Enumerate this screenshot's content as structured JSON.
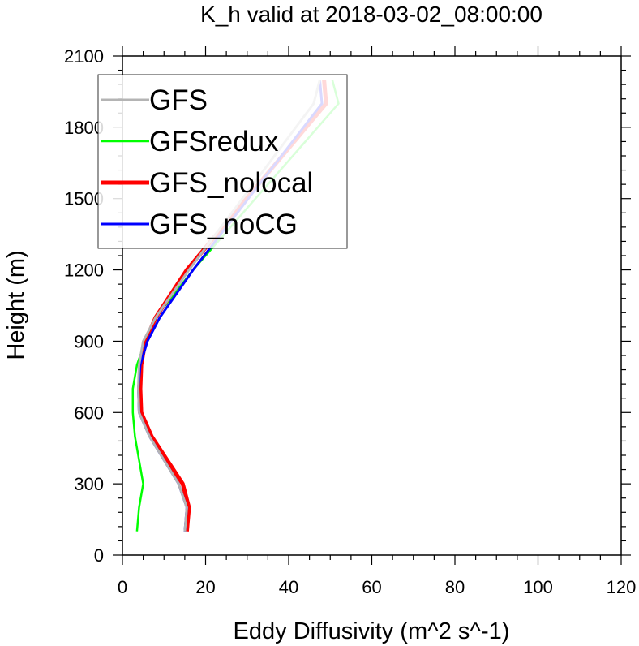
{
  "chart_data": {
    "type": "line",
    "title": "K_h valid at 2018-03-02_08:00:00",
    "xlabel": "Eddy Diffusivity (m^2 s^-1)",
    "ylabel": "Height (m)",
    "xlim": [
      0,
      120
    ],
    "ylim": [
      0,
      2100
    ],
    "xticks": [
      0,
      20,
      40,
      60,
      80,
      100,
      120
    ],
    "yticks": [
      0,
      300,
      600,
      900,
      1200,
      1500,
      1800,
      2100
    ],
    "xtick_labels": [
      "0",
      "20",
      "40",
      "60",
      "80",
      "100",
      "120"
    ],
    "ytick_labels": [
      "0",
      "300",
      "600",
      "900",
      "1200",
      "1500",
      "1800",
      "2100"
    ],
    "grid": false,
    "legend_position": "top-left",
    "series": [
      {
        "name": "GFS",
        "color": "#b4b4b4",
        "x": [
          15.0,
          15.5,
          13.5,
          6.5,
          4.0,
          3.8,
          4.0,
          5.0,
          8.0,
          16.0,
          46.0,
          47.5
        ],
        "y": [
          100,
          200,
          300,
          500,
          600,
          700,
          800,
          900,
          1000,
          1200,
          1900,
          2000
        ]
      },
      {
        "name": "GFSredux",
        "color": "#00ff00",
        "x": [
          3.5,
          4.0,
          5.0,
          3.0,
          2.5,
          2.5,
          3.5,
          5.5,
          8.0,
          17.0,
          52.0,
          50.5
        ],
        "y": [
          100,
          200,
          300,
          500,
          600,
          700,
          800,
          900,
          1000,
          1200,
          1900,
          2000
        ]
      },
      {
        "name": "GFS_nolocal",
        "color": "#ff0000",
        "x": [
          15.5,
          16.0,
          14.5,
          7.0,
          4.5,
          4.3,
          4.5,
          5.5,
          8.0,
          15.5,
          49.0,
          48.5
        ],
        "y": [
          100,
          200,
          300,
          500,
          600,
          700,
          800,
          900,
          1000,
          1200,
          1900,
          2000
        ]
      },
      {
        "name": "GFS_noCG",
        "color": "#0000ff",
        "x": [
          15.0,
          15.5,
          13.5,
          6.5,
          4.0,
          3.8,
          4.3,
          6.0,
          9.0,
          17.0,
          48.0,
          47.5
        ],
        "y": [
          100,
          200,
          300,
          500,
          600,
          700,
          800,
          900,
          1000,
          1200,
          1900,
          2000
        ]
      }
    ]
  }
}
